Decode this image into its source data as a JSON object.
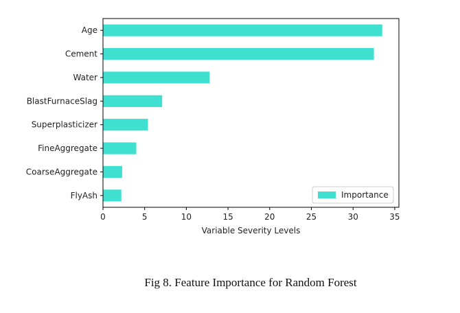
{
  "chart_data": {
    "type": "bar",
    "orientation": "horizontal",
    "categories": [
      "Age",
      "Cement",
      "Water",
      "BlastFurnaceSlag",
      "Superplasticizer",
      "FineAggregate",
      "CoarseAggregate",
      "FlyAsh"
    ],
    "series": [
      {
        "name": "Importance",
        "values": [
          33.5,
          32.5,
          12.8,
          7.1,
          5.4,
          4.0,
          2.3,
          2.2
        ]
      }
    ],
    "xlabel": "Variable Severity Levels",
    "ylabel": "",
    "xlim": [
      0,
      35.5
    ],
    "xticks": [
      0,
      5,
      10,
      15,
      20,
      25,
      30,
      35
    ],
    "grid": false,
    "legend_position": "bottom-right",
    "bar_color": "#40e0d0"
  },
  "caption": "Fig 8. Feature Importance for Random Forest"
}
